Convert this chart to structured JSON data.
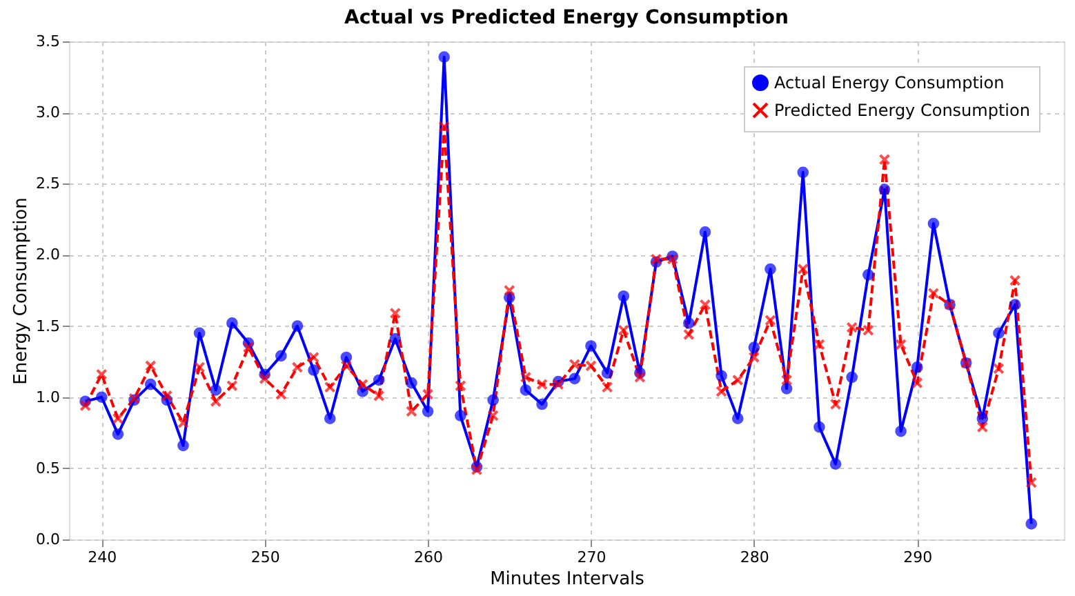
{
  "chart_data": {
    "type": "line",
    "title": "Actual vs Predicted Energy Consumption",
    "xlabel": "Minutes Intervals",
    "ylabel": "Energy Consumption",
    "x": [
      239,
      240,
      241,
      242,
      243,
      244,
      245,
      246,
      247,
      248,
      249,
      250,
      251,
      252,
      253,
      254,
      255,
      256,
      257,
      258,
      259,
      260,
      261,
      262,
      263,
      264,
      265,
      266,
      267,
      268,
      269,
      270,
      271,
      272,
      273,
      274,
      275,
      276,
      277,
      278,
      279,
      280,
      281,
      282,
      283,
      284,
      285,
      286,
      287,
      288,
      289,
      290,
      291,
      292,
      293,
      294,
      295,
      296,
      297
    ],
    "series": [
      {
        "name": "Actual Energy Consumption",
        "color": "#0000ff",
        "marker": "circle",
        "line_style": "solid",
        "values": [
          0.97,
          1.0,
          0.74,
          0.98,
          1.09,
          0.98,
          0.66,
          1.45,
          1.05,
          1.52,
          1.38,
          1.16,
          1.29,
          1.5,
          1.19,
          0.85,
          1.28,
          1.04,
          1.12,
          1.41,
          1.1,
          0.9,
          3.39,
          0.87,
          0.51,
          0.98,
          1.7,
          1.05,
          0.95,
          1.11,
          1.13,
          1.36,
          1.17,
          1.71,
          1.17,
          1.95,
          1.99,
          1.52,
          2.16,
          1.15,
          0.85,
          1.35,
          1.9,
          1.06,
          2.58,
          0.79,
          0.53,
          1.14,
          1.86,
          2.46,
          0.76,
          1.21,
          2.22,
          1.65,
          1.24,
          0.85,
          1.45,
          1.65,
          0.11
        ]
      },
      {
        "name": "Predicted Energy Consumption",
        "color": "#ff0000",
        "marker": "cross",
        "line_style": "dashed",
        "values": [
          0.94,
          1.16,
          0.85,
          0.99,
          1.22,
          1.01,
          0.82,
          1.21,
          0.97,
          1.08,
          1.35,
          1.13,
          1.02,
          1.21,
          1.28,
          1.07,
          1.22,
          1.09,
          1.01,
          1.59,
          0.9,
          1.02,
          2.9,
          1.08,
          0.49,
          0.87,
          1.75,
          1.14,
          1.09,
          1.09,
          1.23,
          1.22,
          1.07,
          1.47,
          1.14,
          1.97,
          1.97,
          1.44,
          1.65,
          1.04,
          1.12,
          1.28,
          1.54,
          1.12,
          1.9,
          1.37,
          0.95,
          1.49,
          1.47,
          2.67,
          1.37,
          1.1,
          1.73,
          1.65,
          1.24,
          0.79,
          1.2,
          1.82,
          0.4
        ]
      }
    ],
    "xlim": [
      238,
      299
    ],
    "xticks": [
      240,
      250,
      260,
      270,
      280,
      290
    ],
    "ylim": [
      0,
      3.5
    ],
    "yticks": [
      {
        "value": 0,
        "label": "0.0"
      },
      0.5,
      {
        "value": 1,
        "label": "1.0"
      },
      1.5,
      {
        "value": 2,
        "label": "2.0"
      },
      2.5,
      {
        "value": 3,
        "label": "3.0"
      },
      3.5
    ],
    "grid": true,
    "legend": "top right"
  }
}
